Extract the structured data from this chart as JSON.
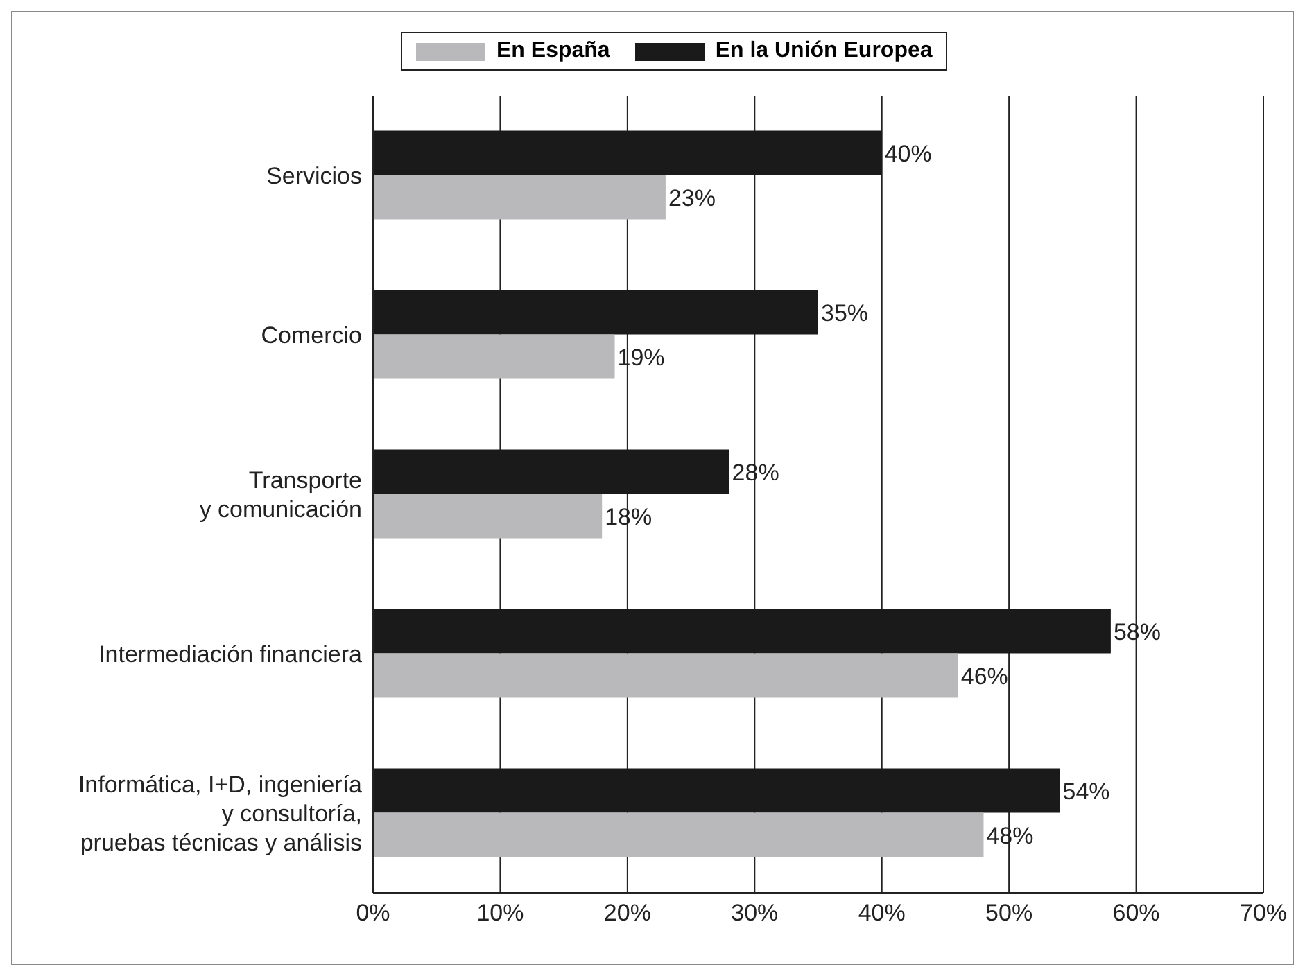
{
  "chart_data": {
    "type": "bar",
    "orientation": "horizontal",
    "categories": [
      "Servicios",
      "Comercio",
      "Transporte\ny comunicación",
      "Intermediación financiera",
      "Informática, I+D, ingeniería\ny consultoría,\npruebas técnicas y análisis"
    ],
    "series": [
      {
        "name": "En España",
        "color": "#b9b9bb",
        "values": [
          23,
          19,
          18,
          46,
          48
        ],
        "value_labels": [
          "23%",
          "19%",
          "18%",
          "46%",
          "48%"
        ]
      },
      {
        "name": "En la Unión Europea",
        "color": "#1a1a1a",
        "values": [
          40,
          35,
          28,
          58,
          54
        ],
        "value_labels": [
          "40%",
          "35%",
          "28%",
          "58%",
          "54%"
        ]
      }
    ],
    "xlim": [
      0,
      70
    ],
    "xticks": [
      {
        "value": 0,
        "label": "0%"
      },
      {
        "value": 10,
        "label": "10%"
      },
      {
        "value": 20,
        "label": "20%"
      },
      {
        "value": 30,
        "label": "30%"
      },
      {
        "value": 40,
        "label": "40%"
      },
      {
        "value": 50,
        "label": "50%"
      },
      {
        "value": 60,
        "label": "60%"
      },
      {
        "value": 70,
        "label": "70%"
      }
    ],
    "grid": "x",
    "legend": "top"
  }
}
